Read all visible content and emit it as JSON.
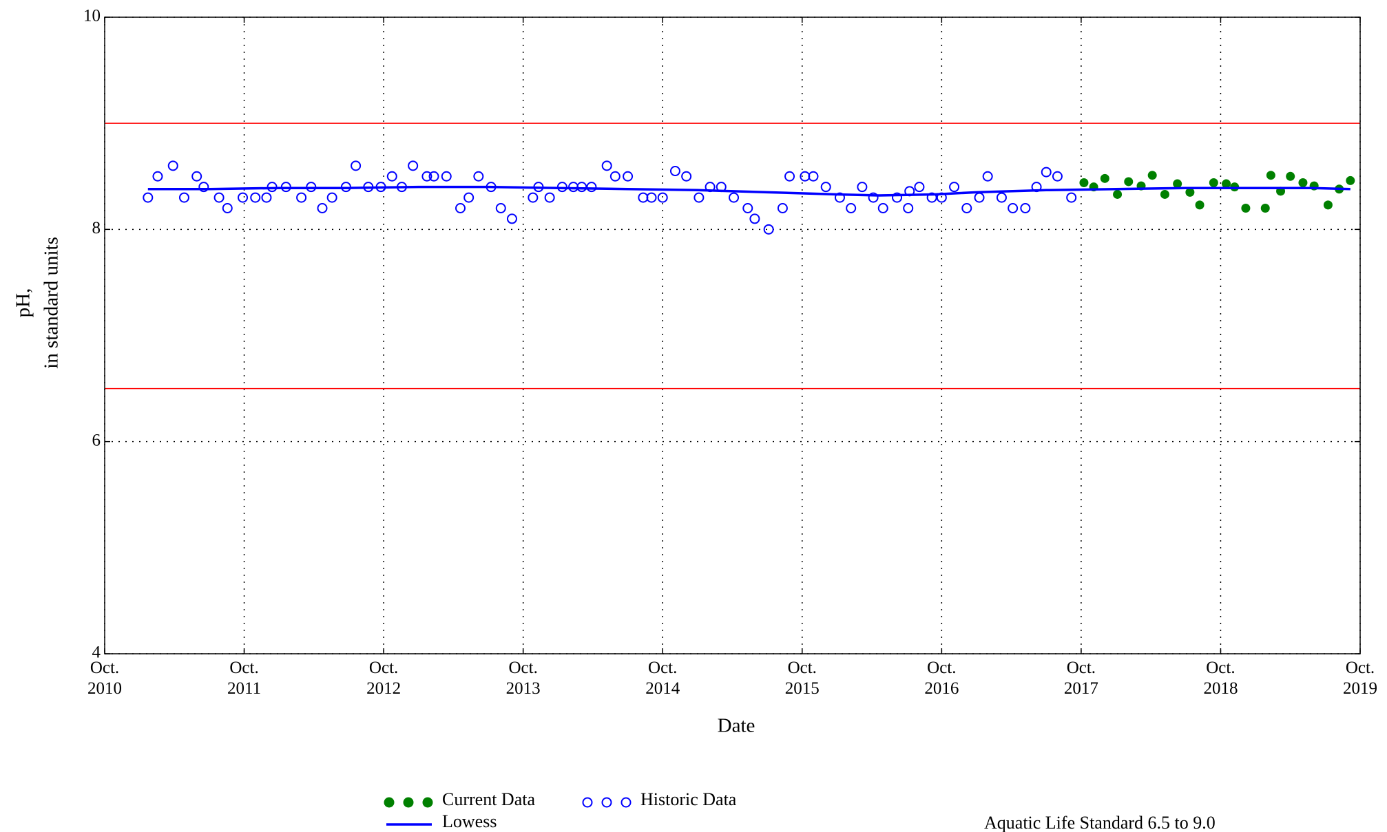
{
  "chart_data": {
    "type": "scatter",
    "xlabel": "Date",
    "ylabel": [
      "pH,",
      "in standard units"
    ],
    "xlim": [
      2010.75,
      2019.75
    ],
    "xticks": [
      {
        "value": 2010.75,
        "label": "Oct.\n2010"
      },
      {
        "value": 2011.75,
        "label": "Oct.\n2011"
      },
      {
        "value": 2012.75,
        "label": "Oct.\n2012"
      },
      {
        "value": 2013.75,
        "label": "Oct.\n2013"
      },
      {
        "value": 2014.75,
        "label": "Oct.\n2014"
      },
      {
        "value": 2015.75,
        "label": "Oct.\n2015"
      },
      {
        "value": 2016.75,
        "label": "Oct.\n2016"
      },
      {
        "value": 2017.75,
        "label": "Oct.\n2017"
      },
      {
        "value": 2018.75,
        "label": "Oct.\n2018"
      },
      {
        "value": 2019.75,
        "label": "Oct.\n2019"
      }
    ],
    "ylim": [
      4,
      10
    ],
    "yticks": [
      4,
      6,
      8,
      10
    ],
    "grid": true,
    "series": [
      {
        "name": "Current Data",
        "color": "#008000",
        "marker": "filled",
        "x": [
          2017.77,
          2017.84,
          2017.92,
          2018.01,
          2018.09,
          2018.18,
          2018.26,
          2018.35,
          2018.44,
          2018.53,
          2018.6,
          2018.7,
          2018.79,
          2018.85,
          2018.93,
          2019.07,
          2019.11,
          2019.18,
          2019.25,
          2019.34,
          2019.42,
          2019.52,
          2019.6,
          2019.68
        ],
        "values": [
          8.44,
          8.4,
          8.48,
          8.33,
          8.45,
          8.41,
          8.51,
          8.33,
          8.43,
          8.35,
          8.23,
          8.44,
          8.43,
          8.4,
          8.2,
          8.2,
          8.51,
          8.36,
          8.5,
          8.44,
          8.41,
          8.23,
          8.38,
          8.46
        ]
      },
      {
        "name": "Historic Data",
        "color": "#0000ff",
        "marker": "open",
        "x": [
          2011.06,
          2011.13,
          2011.24,
          2011.32,
          2011.41,
          2011.46,
          2011.57,
          2011.63,
          2011.74,
          2011.83,
          2011.91,
          2011.95,
          2012.05,
          2012.16,
          2012.23,
          2012.31,
          2012.38,
          2012.48,
          2012.55,
          2012.64,
          2012.73,
          2012.81,
          2012.88,
          2012.96,
          2013.06,
          2013.11,
          2013.2,
          2013.3,
          2013.36,
          2013.43,
          2013.52,
          2013.59,
          2013.67,
          2013.82,
          2013.86,
          2013.94,
          2014.03,
          2014.11,
          2014.17,
          2014.24,
          2014.35,
          2014.41,
          2014.5,
          2014.61,
          2014.67,
          2014.75,
          2014.84,
          2014.92,
          2015.01,
          2015.09,
          2015.17,
          2015.26,
          2015.36,
          2015.41,
          2015.51,
          2015.61,
          2015.66,
          2015.77,
          2015.83,
          2015.92,
          2016.02,
          2016.1,
          2016.18,
          2016.26,
          2016.33,
          2016.43,
          2016.51,
          2016.52,
          2016.59,
          2016.68,
          2016.75,
          2016.84,
          2016.93,
          2017.02,
          2017.08,
          2017.18,
          2017.26,
          2017.35,
          2017.43,
          2017.5,
          2017.58,
          2017.68
        ],
        "values": [
          8.3,
          8.5,
          8.6,
          8.3,
          8.5,
          8.4,
          8.3,
          8.2,
          8.3,
          8.3,
          8.3,
          8.4,
          8.4,
          8.3,
          8.4,
          8.2,
          8.3,
          8.4,
          8.6,
          8.4,
          8.4,
          8.5,
          8.4,
          8.6,
          8.5,
          8.5,
          8.5,
          8.2,
          8.3,
          8.5,
          8.4,
          8.2,
          8.1,
          8.3,
          8.4,
          8.3,
          8.4,
          8.4,
          8.4,
          8.4,
          8.6,
          8.5,
          8.5,
          8.3,
          8.3,
          8.3,
          8.55,
          8.5,
          8.3,
          8.4,
          8.4,
          8.3,
          8.2,
          8.1,
          8.0,
          8.2,
          8.5,
          8.5,
          8.5,
          8.4,
          8.3,
          8.2,
          8.4,
          8.3,
          8.2,
          8.3,
          8.2,
          8.36,
          8.4,
          8.3,
          8.3,
          8.4,
          8.2,
          8.3,
          8.5,
          8.3,
          8.2,
          8.2,
          8.4,
          8.54,
          8.5,
          8.3
        ]
      },
      {
        "name": "Lowess",
        "color": "#0000ff",
        "marker": "line",
        "x": [
          2011.06,
          2011.5,
          2012.0,
          2012.5,
          2013.0,
          2013.5,
          2014.0,
          2014.5,
          2015.0,
          2015.5,
          2016.0,
          2016.3,
          2016.7,
          2017.0,
          2017.5,
          2018.0,
          2018.5,
          2019.0,
          2019.4,
          2019.68
        ],
        "values": [
          8.38,
          8.38,
          8.39,
          8.39,
          8.4,
          8.4,
          8.39,
          8.38,
          8.37,
          8.35,
          8.33,
          8.32,
          8.33,
          8.35,
          8.37,
          8.38,
          8.39,
          8.39,
          8.39,
          8.38
        ]
      }
    ],
    "reference_lines": {
      "values": [
        9.0,
        6.5
      ],
      "color": "#ff0000"
    },
    "annotation": "Aquatic Life Standard 6.5 to 9.0",
    "annotation_color": "#ff0000"
  }
}
